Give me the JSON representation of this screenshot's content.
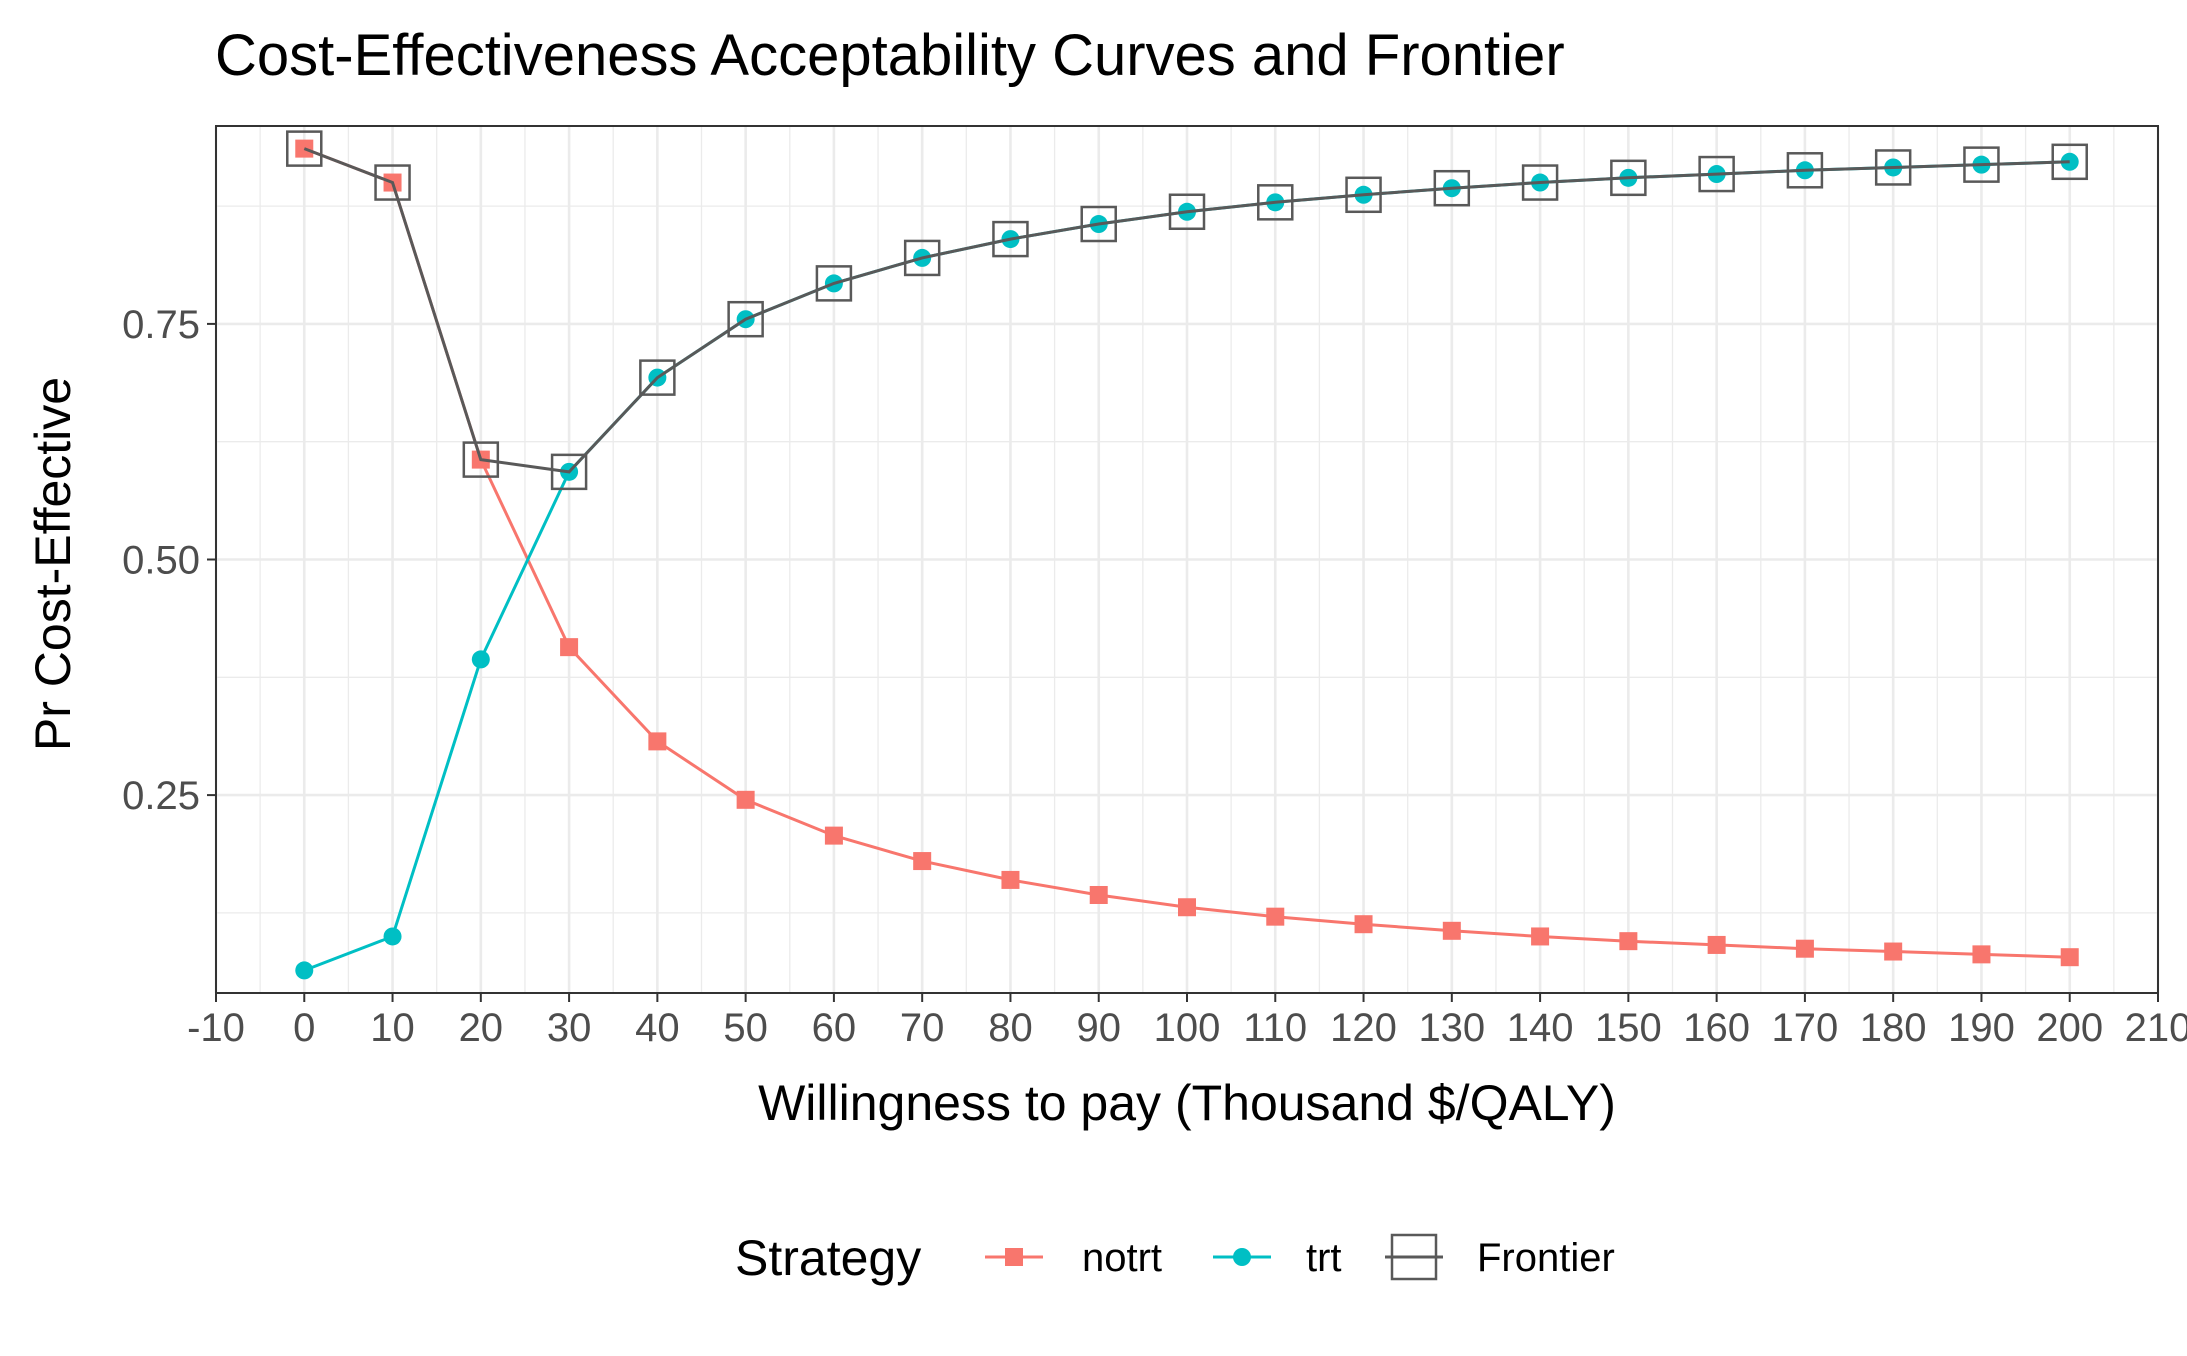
{
  "chart_data": {
    "type": "line",
    "title": "Cost-Effectiveness Acceptability Curves and Frontier",
    "xlabel": "Willingness to pay (Thousand $/QALY)",
    "ylabel": "Pr Cost-Effective",
    "xlim": [
      -10,
      210
    ],
    "ylim": [
      0.04,
      0.96
    ],
    "x_ticks": [
      -10,
      0,
      10,
      20,
      30,
      40,
      50,
      60,
      70,
      80,
      90,
      100,
      110,
      120,
      130,
      140,
      150,
      160,
      170,
      180,
      190,
      200,
      210
    ],
    "x_tick_labels": [
      "-10",
      "0",
      "10",
      "20",
      "30",
      "40",
      "50",
      "60",
      "70",
      "80",
      "90",
      "100",
      "110",
      "120",
      "130",
      "140",
      "150",
      "160",
      "170",
      "180",
      "190",
      "200",
      "210"
    ],
    "y_ticks": [
      0.25,
      0.5,
      0.75
    ],
    "y_tick_labels": [
      "0.25",
      "0.50",
      "0.75"
    ],
    "grid": true,
    "legend": {
      "title": "Strategy",
      "position": "bottom",
      "entries": [
        "notrt",
        "trt",
        "Frontier"
      ]
    },
    "x": [
      0,
      10,
      20,
      30,
      40,
      50,
      60,
      70,
      80,
      90,
      100,
      110,
      120,
      130,
      140,
      150,
      160,
      170,
      180,
      190,
      200
    ],
    "series": [
      {
        "name": "notrt",
        "color": "#F8766D",
        "marker": "square",
        "values": [
          0.936,
          0.9,
          0.606,
          0.407,
          0.307,
          0.245,
          0.207,
          0.18,
          0.16,
          0.144,
          0.131,
          0.121,
          0.113,
          0.106,
          0.1,
          0.095,
          0.091,
          0.087,
          0.084,
          0.081,
          0.078
        ]
      },
      {
        "name": "trt",
        "color": "#00BFC4",
        "marker": "circle",
        "values": [
          0.064,
          0.1,
          0.394,
          0.593,
          0.693,
          0.755,
          0.793,
          0.82,
          0.84,
          0.856,
          0.869,
          0.879,
          0.887,
          0.894,
          0.9,
          0.905,
          0.909,
          0.913,
          0.916,
          0.919,
          0.922
        ]
      },
      {
        "name": "Frontier",
        "color": "#595959",
        "marker": "open-square",
        "values": [
          0.936,
          0.9,
          0.606,
          0.593,
          0.693,
          0.755,
          0.793,
          0.82,
          0.84,
          0.856,
          0.869,
          0.879,
          0.887,
          0.894,
          0.9,
          0.905,
          0.909,
          0.913,
          0.916,
          0.919,
          0.922
        ]
      }
    ]
  }
}
